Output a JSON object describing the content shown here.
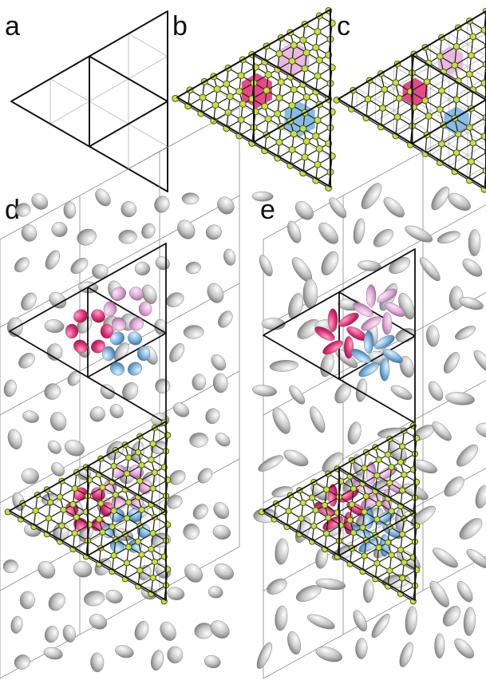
{
  "panels": {
    "a": {
      "label": "a"
    },
    "b": {
      "label": "b"
    },
    "c": {
      "label": "c"
    },
    "d": {
      "label": "d"
    },
    "e": {
      "label": "e"
    }
  },
  "colors": {
    "outline": "#111111",
    "thin_grid": "#bdbdbd",
    "vertex_fill": "#c6e23a",
    "vertex_stroke": "#4b5d12",
    "magenta": "#e33a7c",
    "pink": "#e7b3dc",
    "blue": "#7db6e3",
    "gray_blob": "#b5b5b5"
  }
}
